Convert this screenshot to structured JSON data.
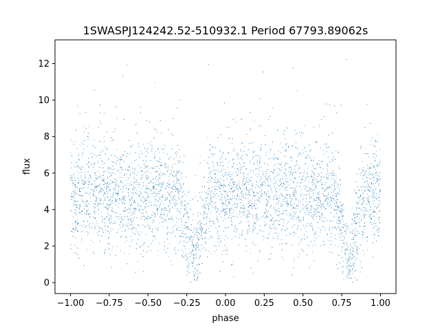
{
  "chart_data": {
    "type": "scatter",
    "title": "1SWASPJ124242.52-510932.1 Period 67793.89062s",
    "xlabel": "phase",
    "ylabel": "flux",
    "xlim": [
      -1.1,
      1.1
    ],
    "ylim": [
      -0.6,
      13.3
    ],
    "x_ticks": [
      -1.0,
      -0.75,
      -0.5,
      -0.25,
      0.0,
      0.25,
      0.5,
      0.75,
      1.0
    ],
    "x_tick_labels": [
      "−1.00",
      "−0.75",
      "−0.50",
      "−0.25",
      "0.00",
      "0.25",
      "0.50",
      "0.75",
      "1.00"
    ],
    "y_ticks": [
      0,
      2,
      4,
      6,
      8,
      10,
      12
    ],
    "y_tick_labels": [
      "0",
      "2",
      "4",
      "6",
      "8",
      "10",
      "12"
    ],
    "grid": false,
    "marker_color": "#1f77b4",
    "series": [
      {
        "baseline_flux": 4.8,
        "scatter_sigma": 1.5,
        "eclipses": [
          {
            "phase_center": -0.2,
            "min_flux": 1.1,
            "half_width": 0.1
          },
          {
            "phase_center": 0.8,
            "min_flux": 1.1,
            "half_width": 0.1
          }
        ],
        "x_range": [
          -1.0,
          1.0
        ],
        "y_range": [
          0.0,
          12.8
        ]
      }
    ]
  }
}
